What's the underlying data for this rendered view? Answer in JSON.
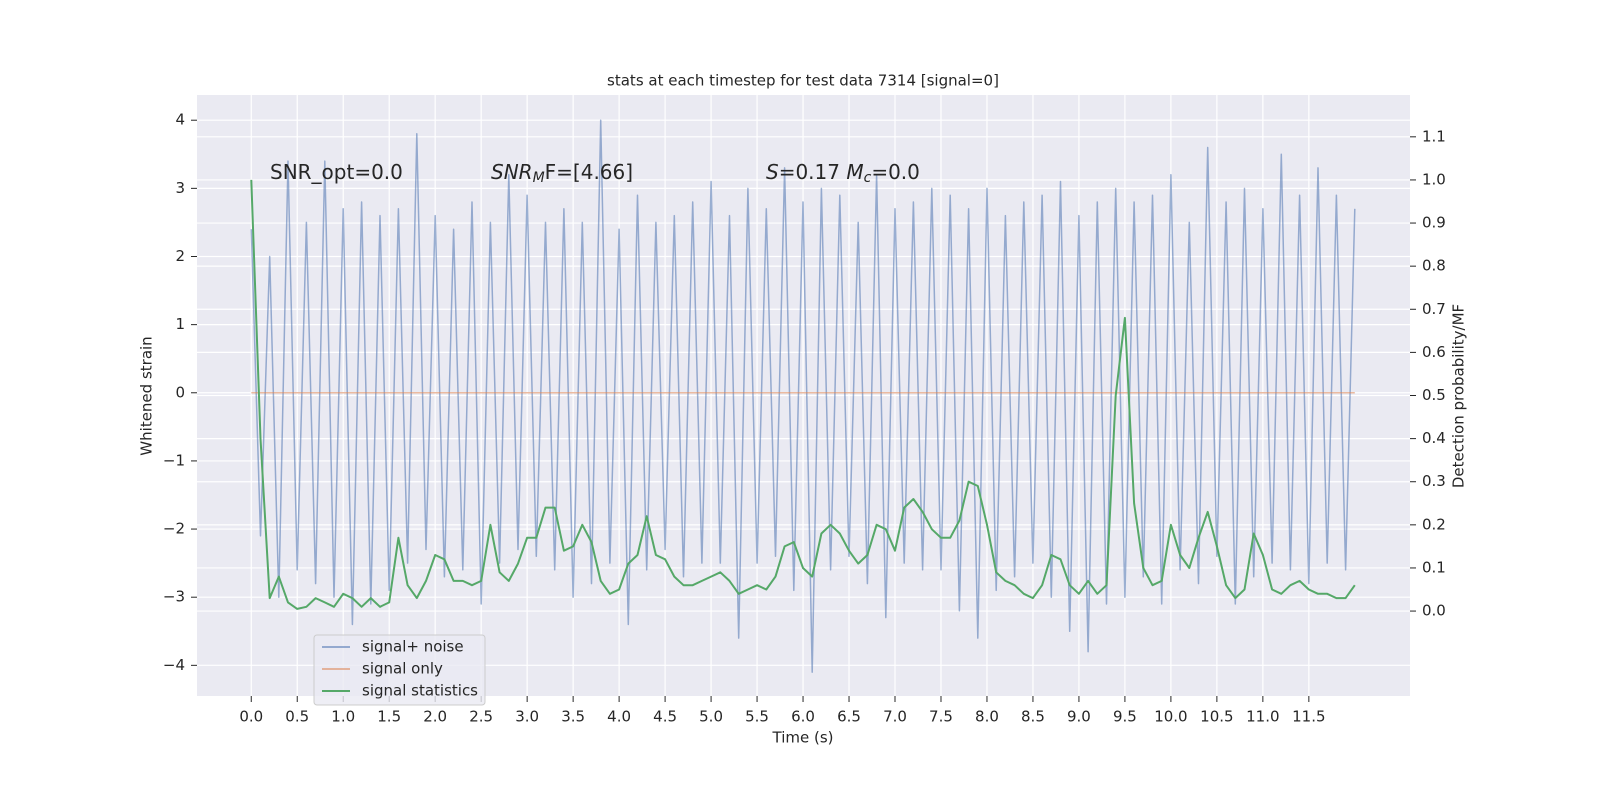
{
  "chart_data": {
    "type": "line",
    "title": "stats at each timestep for test data 7314 [signal=0]",
    "xlabel": "Time (s)",
    "ylabel": "Whitened strain",
    "y2label": "Detection probability/MF",
    "annotations": [
      [
        "SNR_opt=0.0"
      ],
      [
        "SNR",
        "M",
        "F=[4.66]"
      ],
      [
        "S",
        "=0.17   ",
        "M",
        "c",
        "=0.0"
      ]
    ],
    "x": [
      0,
      0.1,
      0.2,
      0.3,
      0.4,
      0.5,
      0.6,
      0.7,
      0.8,
      0.9,
      1,
      1.1,
      1.2,
      1.3,
      1.4,
      1.5,
      1.6,
      1.7,
      1.8,
      1.9,
      2,
      2.1,
      2.2,
      2.3,
      2.4,
      2.5,
      2.6,
      2.7,
      2.8,
      2.9,
      3,
      3.1,
      3.2,
      3.3,
      3.4,
      3.5,
      3.6,
      3.7,
      3.8,
      3.9,
      4,
      4.1,
      4.2,
      4.3,
      4.4,
      4.5,
      4.6,
      4.7,
      4.8,
      4.9,
      5,
      5.1,
      5.2,
      5.3,
      5.4,
      5.5,
      5.6,
      5.7,
      5.8,
      5.9,
      6,
      6.1,
      6.2,
      6.3,
      6.4,
      6.5,
      6.6,
      6.7,
      6.8,
      6.9,
      7,
      7.1,
      7.2,
      7.3,
      7.4,
      7.5,
      7.6,
      7.7,
      7.8,
      7.9,
      8,
      8.1,
      8.2,
      8.3,
      8.4,
      8.5,
      8.6,
      8.7,
      8.8,
      8.9,
      9,
      9.1,
      9.2,
      9.3,
      9.4,
      9.5,
      9.6,
      9.7,
      9.8,
      9.9,
      10,
      10.1,
      10.2,
      10.3,
      10.4,
      10.5,
      10.6,
      10.7,
      10.8,
      10.9,
      11,
      11.1,
      11.2,
      11.3,
      11.4,
      11.5,
      11.6,
      11.7,
      11.8,
      11.9,
      12
    ],
    "series": [
      {
        "name": "signal+ noise",
        "color": "#4c72b0",
        "values": [
          2.4,
          -2.1,
          2.0,
          -3.0,
          3.4,
          -2.6,
          2.5,
          -2.8,
          3.4,
          -3.0,
          2.7,
          -3.4,
          2.8,
          -3.1,
          2.6,
          -2.9,
          2.7,
          -2.5,
          3.8,
          -2.3,
          2.6,
          -2.7,
          2.4,
          -2.6,
          2.8,
          -3.1,
          2.5,
          -2.5,
          3.2,
          -2.3,
          2.9,
          -2.4,
          2.5,
          -2.6,
          2.7,
          -3.0,
          2.5,
          -2.8,
          4.0,
          -2.5,
          2.4,
          -3.4,
          2.9,
          -2.6,
          2.5,
          -2.3,
          2.6,
          -2.7,
          2.8,
          -2.5,
          3.1,
          -2.5,
          2.6,
          -3.6,
          3.0,
          -2.5,
          2.7,
          -2.4,
          3.3,
          -2.9,
          2.8,
          -4.1,
          3.0,
          -2.6,
          2.9,
          -2.4,
          2.5,
          -2.8,
          3.2,
          -3.3,
          2.7,
          -2.5,
          2.8,
          -2.6,
          3.0,
          -2.6,
          2.9,
          -3.2,
          2.7,
          -3.6,
          3.0,
          -2.9,
          2.6,
          -2.7,
          2.8,
          -2.5,
          2.9,
          -3.0,
          3.1,
          -3.5,
          2.6,
          -3.8,
          2.8,
          -3.1,
          3.0,
          -3.0,
          2.8,
          -2.7,
          2.9,
          -3.1,
          3.2,
          -2.6,
          2.5,
          -2.8,
          3.6,
          -2.4,
          2.8,
          -3.1,
          3.0,
          -2.7,
          2.7,
          -2.5,
          3.5,
          -2.6,
          2.9,
          -2.8,
          3.3,
          -2.5,
          2.9,
          -2.6,
          2.7
        ]
      },
      {
        "name": "signal only",
        "color": "#dd8452",
        "x": [
          0,
          12
        ],
        "values": [
          0,
          0
        ]
      },
      {
        "name": "signal statistics",
        "color": "#55a868",
        "axis": "y2",
        "values": [
          1.0,
          0.4,
          0.03,
          0.08,
          0.02,
          0.005,
          0.01,
          0.03,
          0.02,
          0.01,
          0.04,
          0.03,
          0.01,
          0.03,
          0.01,
          0.02,
          0.17,
          0.06,
          0.03,
          0.07,
          0.13,
          0.12,
          0.07,
          0.07,
          0.06,
          0.07,
          0.2,
          0.09,
          0.07,
          0.11,
          0.17,
          0.17,
          0.24,
          0.24,
          0.14,
          0.15,
          0.2,
          0.16,
          0.07,
          0.04,
          0.05,
          0.11,
          0.13,
          0.22,
          0.13,
          0.12,
          0.08,
          0.06,
          0.06,
          0.07,
          0.08,
          0.09,
          0.07,
          0.04,
          0.05,
          0.06,
          0.05,
          0.08,
          0.15,
          0.16,
          0.1,
          0.08,
          0.18,
          0.2,
          0.18,
          0.14,
          0.11,
          0.13,
          0.2,
          0.19,
          0.14,
          0.24,
          0.26,
          0.23,
          0.19,
          0.17,
          0.17,
          0.21,
          0.3,
          0.29,
          0.2,
          0.09,
          0.07,
          0.06,
          0.04,
          0.03,
          0.06,
          0.13,
          0.12,
          0.06,
          0.04,
          0.07,
          0.04,
          0.06,
          0.5,
          0.68,
          0.25,
          0.1,
          0.06,
          0.07,
          0.2,
          0.13,
          0.1,
          0.17,
          0.23,
          0.15,
          0.06,
          0.03,
          0.05,
          0.18,
          0.13,
          0.05,
          0.04,
          0.06,
          0.07,
          0.05,
          0.04,
          0.04,
          0.03,
          0.03,
          0.06
        ]
      }
    ],
    "xlim": [
      -0.59,
      12.6
    ],
    "xticks": [
      {
        "value": 0,
        "label": "0.0"
      },
      0.5,
      {
        "value": 1,
        "label": "1.0"
      },
      1.5,
      {
        "value": 2,
        "label": "2.0"
      },
      2.5,
      {
        "value": 3,
        "label": "3.0"
      },
      3.5,
      {
        "value": 4,
        "label": "4.0"
      },
      4.5,
      {
        "value": 5,
        "label": "5.0"
      },
      5.5,
      {
        "value": 6,
        "label": "6.0"
      },
      6.5,
      {
        "value": 7,
        "label": "7.0"
      },
      7.5,
      {
        "value": 8,
        "label": "8.0"
      },
      8.5,
      {
        "value": 9,
        "label": "9.0"
      },
      9.5,
      {
        "value": 10,
        "label": "10.0"
      },
      10.5,
      {
        "value": 11,
        "label": "11.0"
      },
      11.5
    ],
    "ylim": [
      -4.45,
      4.37
    ],
    "yticks": [
      {
        "value": -4,
        "label": "−4"
      },
      {
        "value": -3,
        "label": "−3"
      },
      {
        "value": -2,
        "label": "−2"
      },
      {
        "value": -1,
        "label": "−1"
      },
      0,
      1,
      2,
      3,
      4
    ],
    "y2lim": [
      -0.197,
      1.197
    ],
    "y2ticks": [
      {
        "value": 0,
        "label": "0.0"
      },
      0.1,
      0.2,
      0.3,
      0.4,
      0.5,
      0.6,
      0.7,
      0.8,
      0.9,
      {
        "value": 1,
        "label": "1.0"
      },
      1.1
    ],
    "grid": true,
    "legend": "lower left"
  }
}
